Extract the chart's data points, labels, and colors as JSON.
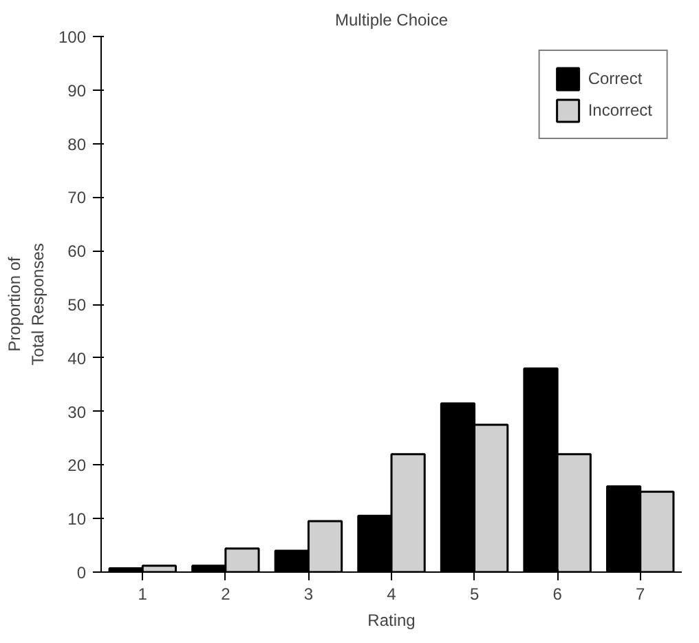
{
  "chart_data": {
    "type": "bar",
    "title": "Multiple Choice",
    "xlabel": "Rating",
    "ylabel": "Proportion of\nTotal Responses",
    "categories": [
      "1",
      "2",
      "3",
      "4",
      "5",
      "6",
      "7"
    ],
    "series": [
      {
        "name": "Correct",
        "color": "#000000",
        "values": [
          0.7,
          1.2,
          4,
          10.5,
          31.5,
          38,
          16
        ]
      },
      {
        "name": "Incorrect",
        "color": "#d0d0d0",
        "values": [
          1.2,
          4.4,
          9.5,
          22,
          27.5,
          22,
          15
        ]
      }
    ],
    "ylim": [
      0,
      100
    ],
    "yticks": [
      0,
      10,
      20,
      30,
      40,
      50,
      60,
      70,
      80,
      90,
      100
    ],
    "legend": "top right",
    "grid": false
  }
}
